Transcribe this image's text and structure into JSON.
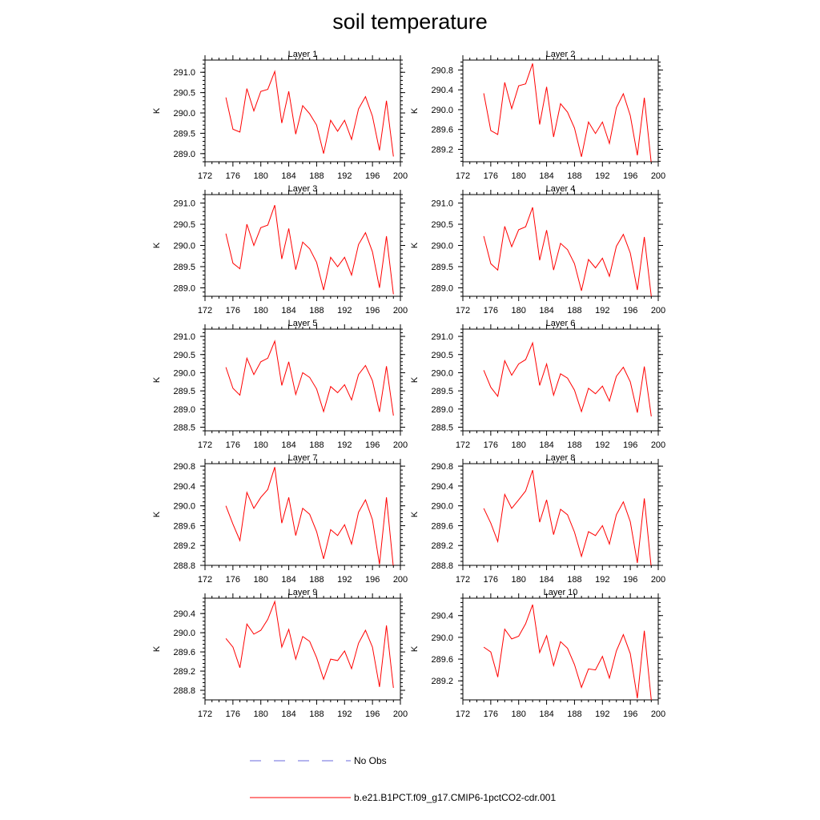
{
  "figure": {
    "title": "soil temperature"
  },
  "chart_data": [
    {
      "type": "line",
      "title": "Layer 1",
      "ylabel": "K",
      "xlim": [
        172,
        200
      ],
      "ylim": [
        288.8,
        291.3
      ],
      "xticks": [
        "172",
        "176",
        "180",
        "184",
        "188",
        "192",
        "196",
        "200"
      ],
      "yticks": [
        "289.0",
        "289.5",
        "290.0",
        "290.5",
        "291.0"
      ],
      "series": [
        {
          "color": "#ff0000",
          "x": [
            175,
            176,
            177,
            178,
            179,
            180,
            181,
            182,
            183,
            184,
            185,
            186,
            187,
            188,
            189,
            190,
            191,
            192,
            193,
            194,
            195,
            196,
            197,
            198,
            199
          ],
          "values": [
            290.38,
            289.6,
            289.53,
            290.6,
            290.05,
            290.53,
            290.58,
            291.02,
            289.75,
            290.53,
            289.48,
            290.18,
            289.98,
            289.7,
            289.0,
            289.82,
            289.55,
            289.82,
            289.35,
            290.1,
            290.4,
            289.92,
            289.08,
            290.3,
            288.93
          ]
        }
      ]
    },
    {
      "type": "line",
      "title": "Layer 2",
      "ylabel": "K",
      "xlim": [
        172,
        200
      ],
      "ylim": [
        288.95,
        291.0
      ],
      "xticks": [
        "172",
        "176",
        "180",
        "184",
        "188",
        "192",
        "196",
        "200"
      ],
      "yticks": [
        "289.2",
        "289.6",
        "290.0",
        "290.4",
        "290.8"
      ],
      "series": [
        {
          "color": "#ff0000",
          "x": [
            175,
            176,
            177,
            178,
            179,
            180,
            181,
            182,
            183,
            184,
            185,
            186,
            187,
            188,
            189,
            190,
            191,
            192,
            193,
            194,
            195,
            196,
            197,
            198,
            199
          ],
          "values": [
            290.33,
            289.58,
            289.5,
            290.55,
            290.02,
            290.48,
            290.52,
            290.93,
            289.7,
            290.46,
            289.45,
            290.12,
            289.95,
            289.63,
            289.05,
            289.75,
            289.52,
            289.75,
            289.32,
            290.04,
            290.32,
            289.88,
            289.08,
            290.24,
            288.92
          ]
        }
      ]
    },
    {
      "type": "line",
      "title": "Layer 3",
      "ylabel": "K",
      "xlim": [
        172,
        200
      ],
      "ylim": [
        288.8,
        291.2
      ],
      "xticks": [
        "172",
        "176",
        "180",
        "184",
        "188",
        "192",
        "196",
        "200"
      ],
      "yticks": [
        "289.0",
        "289.5",
        "290.0",
        "290.5",
        "291.0"
      ],
      "series": [
        {
          "color": "#ff0000",
          "x": [
            175,
            176,
            177,
            178,
            179,
            180,
            181,
            182,
            183,
            184,
            185,
            186,
            187,
            188,
            189,
            190,
            191,
            192,
            193,
            194,
            195,
            196,
            197,
            198,
            199
          ],
          "values": [
            290.28,
            289.58,
            289.45,
            290.5,
            290.0,
            290.42,
            290.48,
            290.95,
            289.68,
            290.4,
            289.43,
            290.08,
            289.92,
            289.6,
            288.95,
            289.72,
            289.5,
            289.72,
            289.3,
            290.02,
            290.3,
            289.85,
            289.0,
            290.22,
            288.85
          ]
        }
      ]
    },
    {
      "type": "line",
      "title": "Layer 4",
      "ylabel": "K",
      "xlim": [
        172,
        200
      ],
      "ylim": [
        288.8,
        291.2
      ],
      "xticks": [
        "172",
        "176",
        "180",
        "184",
        "188",
        "192",
        "196",
        "200"
      ],
      "yticks": [
        "289.0",
        "289.5",
        "290.0",
        "290.5",
        "291.0"
      ],
      "series": [
        {
          "color": "#ff0000",
          "x": [
            175,
            176,
            177,
            178,
            179,
            180,
            181,
            182,
            183,
            184,
            185,
            186,
            187,
            188,
            189,
            190,
            191,
            192,
            193,
            194,
            195,
            196,
            197,
            198,
            199
          ],
          "values": [
            290.22,
            289.57,
            289.42,
            290.45,
            289.97,
            290.37,
            290.44,
            290.9,
            289.65,
            290.36,
            289.42,
            290.05,
            289.9,
            289.57,
            288.93,
            289.67,
            289.47,
            289.7,
            289.27,
            289.98,
            290.26,
            289.82,
            288.95,
            290.2,
            288.8
          ]
        }
      ]
    },
    {
      "type": "line",
      "title": "Layer 5",
      "ylabel": "K",
      "xlim": [
        172,
        200
      ],
      "ylim": [
        288.4,
        291.2
      ],
      "xticks": [
        "172",
        "176",
        "180",
        "184",
        "188",
        "192",
        "196",
        "200"
      ],
      "yticks": [
        "288.5",
        "289.0",
        "289.5",
        "290.0",
        "290.5",
        "291.0"
      ],
      "series": [
        {
          "color": "#ff0000",
          "x": [
            175,
            176,
            177,
            178,
            179,
            180,
            181,
            182,
            183,
            184,
            185,
            186,
            187,
            188,
            189,
            190,
            191,
            192,
            193,
            194,
            195,
            196,
            197,
            198,
            199
          ],
          "values": [
            290.15,
            289.57,
            289.38,
            290.4,
            289.95,
            290.3,
            290.4,
            290.87,
            289.65,
            290.3,
            289.4,
            290.0,
            289.87,
            289.55,
            288.93,
            289.62,
            289.45,
            289.67,
            289.25,
            289.95,
            290.2,
            289.78,
            288.92,
            290.18,
            288.82
          ]
        }
      ]
    },
    {
      "type": "line",
      "title": "Layer 6",
      "ylabel": "K",
      "xlim": [
        172,
        200
      ],
      "ylim": [
        288.4,
        291.2
      ],
      "xticks": [
        "172",
        "176",
        "180",
        "184",
        "188",
        "192",
        "196",
        "200"
      ],
      "yticks": [
        "288.5",
        "289.0",
        "289.5",
        "290.0",
        "290.5",
        "291.0"
      ],
      "series": [
        {
          "color": "#ff0000",
          "x": [
            175,
            176,
            177,
            178,
            179,
            180,
            181,
            182,
            183,
            184,
            185,
            186,
            187,
            188,
            189,
            190,
            191,
            192,
            193,
            194,
            195,
            196,
            197,
            198,
            199
          ],
          "values": [
            290.07,
            289.6,
            289.35,
            290.33,
            289.93,
            290.24,
            290.36,
            290.82,
            289.65,
            290.24,
            289.38,
            289.97,
            289.85,
            289.52,
            288.93,
            289.57,
            289.42,
            289.63,
            289.22,
            289.9,
            290.15,
            289.75,
            288.9,
            290.17,
            288.8
          ]
        }
      ]
    },
    {
      "type": "line",
      "title": "Layer 7",
      "ylabel": "K",
      "xlim": [
        172,
        200
      ],
      "ylim": [
        288.8,
        290.85
      ],
      "xticks": [
        "172",
        "176",
        "180",
        "184",
        "188",
        "192",
        "196",
        "200"
      ],
      "yticks": [
        "288.8",
        "289.2",
        "289.6",
        "290.0",
        "290.4",
        "290.8"
      ],
      "series": [
        {
          "color": "#ff0000",
          "x": [
            175,
            176,
            177,
            178,
            179,
            180,
            181,
            182,
            183,
            184,
            185,
            186,
            187,
            188,
            189,
            190,
            191,
            192,
            193,
            194,
            195,
            196,
            197,
            198,
            199
          ],
          "values": [
            290.0,
            289.63,
            289.3,
            290.27,
            289.95,
            290.17,
            290.33,
            290.78,
            289.65,
            290.17,
            289.4,
            289.95,
            289.83,
            289.48,
            288.93,
            289.52,
            289.4,
            289.62,
            289.23,
            289.87,
            290.12,
            289.72,
            288.82,
            290.17,
            288.75
          ]
        }
      ]
    },
    {
      "type": "line",
      "title": "Layer 8",
      "ylabel": "K",
      "xlim": [
        172,
        200
      ],
      "ylim": [
        288.8,
        290.85
      ],
      "xticks": [
        "172",
        "176",
        "180",
        "184",
        "188",
        "192",
        "196",
        "200"
      ],
      "yticks": [
        "288.8",
        "289.2",
        "289.6",
        "290.0",
        "290.4",
        "290.8"
      ],
      "series": [
        {
          "color": "#ff0000",
          "x": [
            175,
            176,
            177,
            178,
            179,
            180,
            181,
            182,
            183,
            184,
            185,
            186,
            187,
            188,
            189,
            190,
            191,
            192,
            193,
            194,
            195,
            196,
            197,
            198,
            199
          ],
          "values": [
            289.95,
            289.65,
            289.28,
            290.23,
            289.95,
            290.12,
            290.3,
            290.72,
            289.67,
            290.12,
            289.42,
            289.93,
            289.82,
            289.47,
            288.98,
            289.48,
            289.4,
            289.6,
            289.23,
            289.82,
            290.08,
            289.68,
            288.85,
            290.15,
            288.75
          ]
        }
      ]
    },
    {
      "type": "line",
      "title": "Layer 9",
      "ylabel": "K",
      "xlim": [
        172,
        200
      ],
      "ylim": [
        288.6,
        290.72
      ],
      "xticks": [
        "172",
        "176",
        "180",
        "184",
        "188",
        "192",
        "196",
        "200"
      ],
      "yticks": [
        "288.8",
        "289.2",
        "289.6",
        "290.0",
        "290.4"
      ],
      "series": [
        {
          "color": "#ff0000",
          "x": [
            175,
            176,
            177,
            178,
            179,
            180,
            181,
            182,
            183,
            184,
            185,
            186,
            187,
            188,
            189,
            190,
            191,
            192,
            193,
            194,
            195,
            196,
            197,
            198,
            199
          ],
          "values": [
            289.88,
            289.7,
            289.27,
            290.18,
            289.97,
            290.05,
            290.28,
            290.65,
            289.7,
            290.07,
            289.45,
            289.92,
            289.82,
            289.48,
            289.03,
            289.45,
            289.42,
            289.62,
            289.25,
            289.78,
            290.05,
            289.7,
            288.87,
            290.15,
            288.85
          ]
        }
      ]
    },
    {
      "type": "line",
      "title": "Layer 10",
      "ylabel": "K",
      "xlim": [
        172,
        200
      ],
      "ylim": [
        288.85,
        290.72
      ],
      "xticks": [
        "172",
        "176",
        "180",
        "184",
        "188",
        "192",
        "196",
        "200"
      ],
      "yticks": [
        "289.2",
        "289.6",
        "290.0",
        "290.4"
      ],
      "series": [
        {
          "color": "#ff0000",
          "x": [
            175,
            176,
            177,
            178,
            179,
            180,
            181,
            182,
            183,
            184,
            185,
            186,
            187,
            188,
            189,
            190,
            191,
            192,
            193,
            194,
            195,
            196,
            197,
            198,
            199
          ],
          "values": [
            289.82,
            289.73,
            289.27,
            290.15,
            289.97,
            290.02,
            290.25,
            290.6,
            289.72,
            290.03,
            289.48,
            289.92,
            289.8,
            289.5,
            289.08,
            289.42,
            289.4,
            289.65,
            289.25,
            289.75,
            290.05,
            289.7,
            288.88,
            290.12,
            288.85
          ]
        }
      ]
    }
  ],
  "legend": [
    {
      "label": "No Obs",
      "color": "#6a6adc",
      "style": "dashed"
    },
    {
      "label": "b.e21.B1PCT.f09_g17.CMIP6-1pctCO2-cdr.001",
      "color": "#ff0000",
      "style": "solid"
    }
  ]
}
